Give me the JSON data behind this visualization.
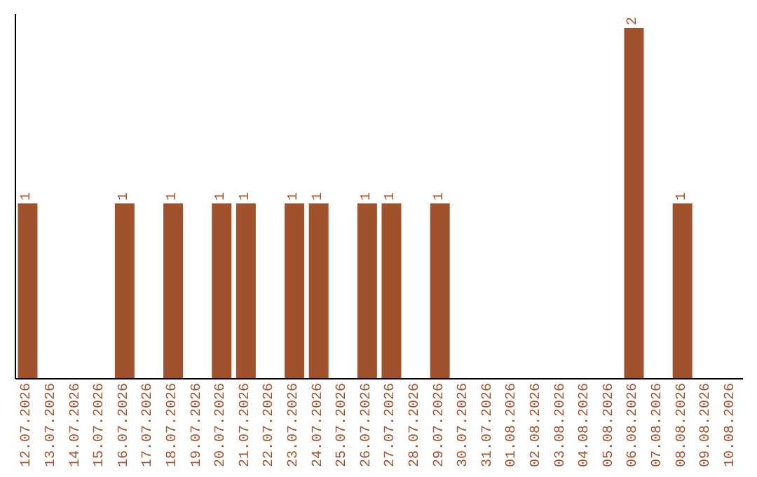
{
  "chart_data": {
    "type": "bar",
    "categories": [
      "12.07.2026",
      "13.07.2026",
      "14.07.2026",
      "15.07.2026",
      "16.07.2026",
      "17.07.2026",
      "18.07.2026",
      "19.07.2026",
      "20.07.2026",
      "21.07.2026",
      "22.07.2026",
      "23.07.2026",
      "24.07.2026",
      "25.07.2026",
      "26.07.2026",
      "27.07.2026",
      "28.07.2026",
      "29.07.2026",
      "30.07.2026",
      "31.07.2026",
      "01.08.2026",
      "02.08.2026",
      "03.08.2026",
      "04.08.2026",
      "05.08.2026",
      "06.08.2026",
      "07.08.2026",
      "08.08.2026",
      "09.08.2026",
      "10.08.2026"
    ],
    "values": [
      1,
      0,
      0,
      0,
      1,
      0,
      1,
      0,
      1,
      1,
      0,
      1,
      1,
      0,
      1,
      1,
      0,
      1,
      0,
      0,
      0,
      0,
      0,
      0,
      0,
      2,
      0,
      1,
      0,
      0
    ],
    "value_labels": [
      "1",
      null,
      null,
      null,
      "1",
      null,
      "1",
      null,
      "1",
      "1",
      null,
      "1",
      "1",
      null,
      "1",
      "1",
      null,
      "1",
      null,
      null,
      null,
      null,
      null,
      null,
      null,
      "2",
      null,
      "1",
      null,
      null
    ],
    "color": "#a0522d",
    "grid": false,
    "legend": false
  }
}
